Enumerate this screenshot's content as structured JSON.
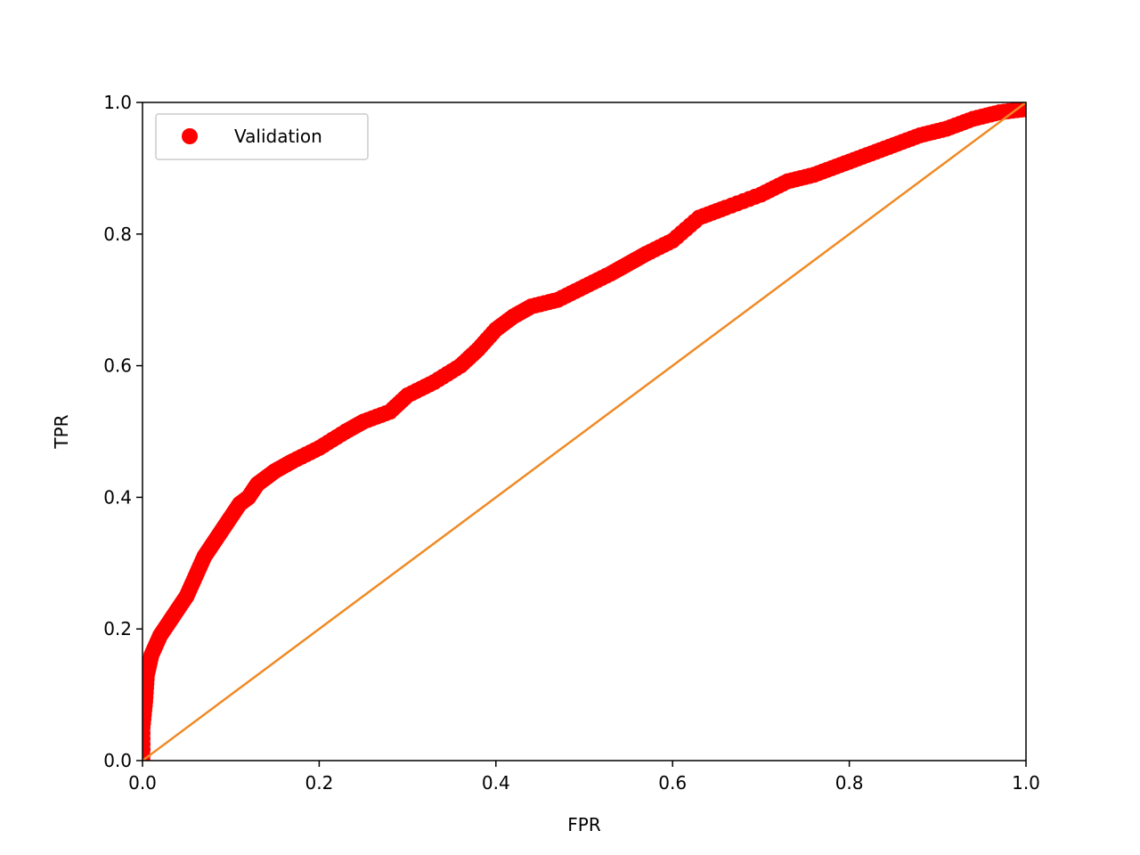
{
  "chart_data": {
    "type": "scatter",
    "title": "",
    "xlabel": "FPR",
    "ylabel": "TPR",
    "xlim": [
      0.0,
      1.0
    ],
    "ylim": [
      0.0,
      1.0
    ],
    "xticks": [
      "0.0",
      "0.2",
      "0.4",
      "0.6",
      "0.8",
      "1.0"
    ],
    "yticks": [
      "0.0",
      "0.2",
      "0.4",
      "0.6",
      "0.8",
      "1.0"
    ],
    "grid": false,
    "legend_position": "top-left",
    "legend": [
      "Validation"
    ],
    "series": [
      {
        "name": "Validation",
        "style": "markers",
        "color": "#ff0000",
        "points": [
          [
            0.0,
            0.0
          ],
          [
            0.0,
            0.05
          ],
          [
            0.003,
            0.09
          ],
          [
            0.005,
            0.13
          ],
          [
            0.01,
            0.16
          ],
          [
            0.02,
            0.19
          ],
          [
            0.03,
            0.21
          ],
          [
            0.04,
            0.23
          ],
          [
            0.05,
            0.25
          ],
          [
            0.06,
            0.28
          ],
          [
            0.07,
            0.31
          ],
          [
            0.08,
            0.33
          ],
          [
            0.09,
            0.35
          ],
          [
            0.1,
            0.37
          ],
          [
            0.11,
            0.39
          ],
          [
            0.12,
            0.4
          ],
          [
            0.13,
            0.42
          ],
          [
            0.14,
            0.43
          ],
          [
            0.15,
            0.44
          ],
          [
            0.17,
            0.455
          ],
          [
            0.2,
            0.475
          ],
          [
            0.23,
            0.5
          ],
          [
            0.25,
            0.515
          ],
          [
            0.28,
            0.53
          ],
          [
            0.3,
            0.555
          ],
          [
            0.33,
            0.575
          ],
          [
            0.36,
            0.6
          ],
          [
            0.38,
            0.625
          ],
          [
            0.4,
            0.655
          ],
          [
            0.42,
            0.675
          ],
          [
            0.44,
            0.69
          ],
          [
            0.47,
            0.7
          ],
          [
            0.5,
            0.72
          ],
          [
            0.53,
            0.74
          ],
          [
            0.55,
            0.755
          ],
          [
            0.57,
            0.77
          ],
          [
            0.6,
            0.79
          ],
          [
            0.63,
            0.825
          ],
          [
            0.66,
            0.84
          ],
          [
            0.7,
            0.86
          ],
          [
            0.73,
            0.88
          ],
          [
            0.76,
            0.89
          ],
          [
            0.79,
            0.905
          ],
          [
            0.82,
            0.92
          ],
          [
            0.85,
            0.935
          ],
          [
            0.88,
            0.95
          ],
          [
            0.91,
            0.96
          ],
          [
            0.94,
            0.975
          ],
          [
            0.97,
            0.985
          ],
          [
            1.0,
            0.99
          ]
        ]
      },
      {
        "name": "",
        "style": "line",
        "color": "#f08a24",
        "points": [
          [
            0.0,
            0.0
          ],
          [
            1.0,
            1.0
          ]
        ]
      }
    ]
  }
}
